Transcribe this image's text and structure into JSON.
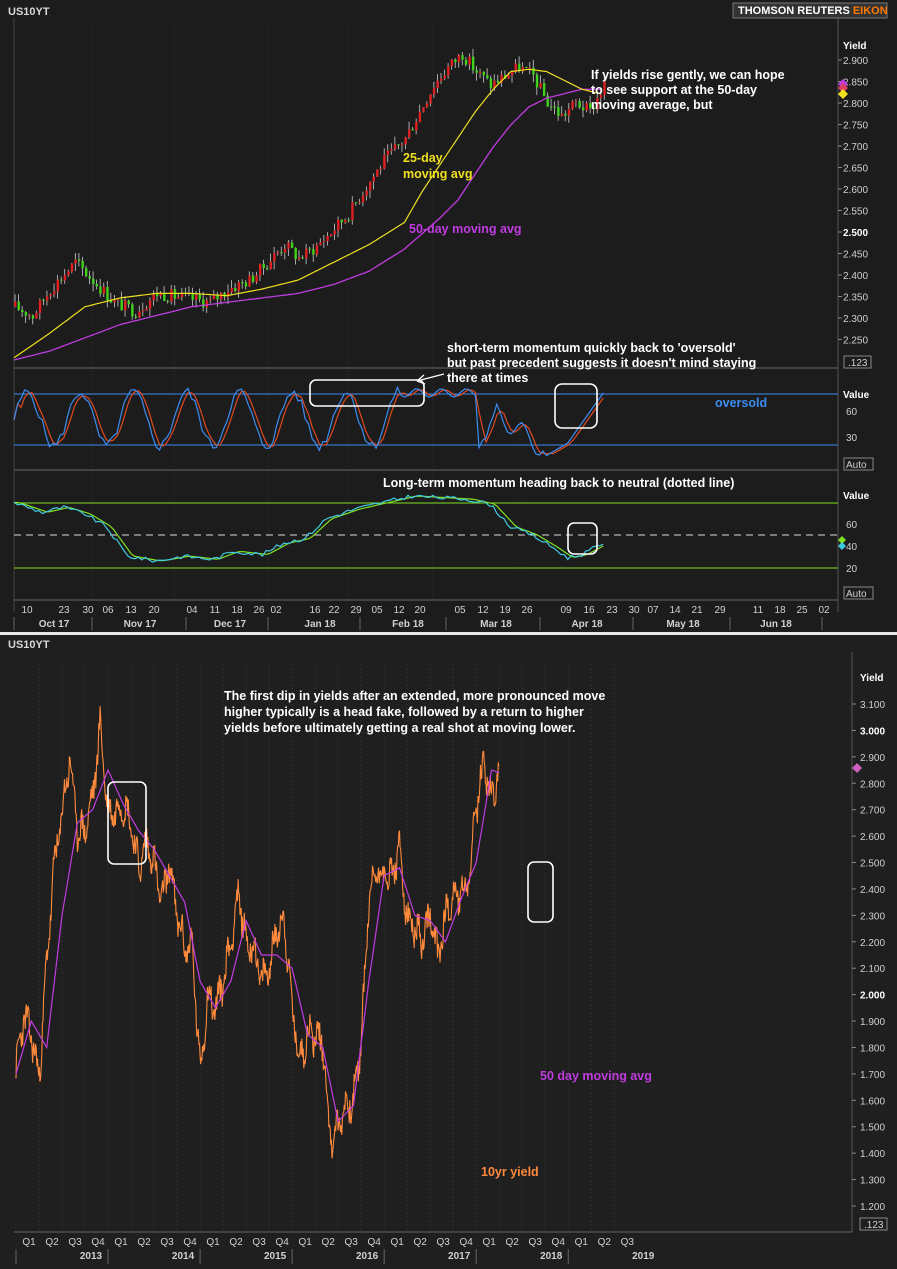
{
  "brand": {
    "name": "THOMSON REUTERS",
    "product": "EIKON"
  },
  "top_panel": {
    "symbol": "US10YT",
    "axis_label": "Yield",
    "y_ticks": [
      "2.900",
      "2.850",
      "2.800",
      "2.750",
      "2.700",
      "2.650",
      "2.600",
      "2.550",
      "2.500",
      "2.450",
      "2.400",
      "2.350",
      "2.300",
      "2.250"
    ],
    "scale_box": ".123",
    "ann_main": [
      "If yields rise gently, we can hope",
      "to see support at the 50-day",
      "moving average, but"
    ],
    "ann_25": [
      "25-day",
      "moving avg"
    ],
    "ann_50": "50-day moving avg",
    "ann_short": [
      "short-term momentum quickly back to 'oversold'",
      "but past precedent suggests it doesn't mind staying",
      "there at times"
    ],
    "ann_oversold": "oversold",
    "ann_long": "Long-term momentum heading back to neutral (dotted line)",
    "mom1_label": "Value",
    "mom1_ticks": [
      "60",
      "30"
    ],
    "mom2_label": "Value",
    "mom2_ticks": [
      "60",
      "40",
      "20"
    ],
    "auto_label": "Auto",
    "x_days": [
      "10",
      "23",
      "30",
      "06",
      "13",
      "20",
      "04",
      "11",
      "18",
      "26",
      "02",
      "16",
      "22",
      "29",
      "05",
      "12",
      "20",
      "05",
      "12",
      "19",
      "26",
      "09",
      "16",
      "23",
      "30",
      "07",
      "14",
      "21",
      "29",
      "11",
      "18",
      "25",
      "02"
    ],
    "x_months": [
      "Oct 17",
      "Nov 17",
      "Dec 17",
      "Jan 18",
      "Feb 18",
      "Mar 18",
      "Apr 18",
      "May 18",
      "Jun 18"
    ]
  },
  "bottom_panel": {
    "symbol": "US10YT",
    "axis_label": "Yield",
    "y_ticks": [
      "3.100",
      "3.000",
      "2.900",
      "2.800",
      "2.700",
      "2.600",
      "2.500",
      "2.400",
      "2.300",
      "2.200",
      "2.100",
      "2.000",
      "1.900",
      "1.800",
      "1.700",
      "1.600",
      "1.500",
      "1.400",
      "1.300",
      "1.200"
    ],
    "scale_box": ".123",
    "ann_main": [
      "The first dip in yields after an extended, more pronounced move",
      "higher typically is a head fake, followed by a return to higher",
      "yields before ultimately getting a real shot at moving lower."
    ],
    "ann_50": "50 day moving avg",
    "ann_10yr": "10yr yield",
    "x_quarters": [
      "Q1",
      "Q2",
      "Q3",
      "Q4",
      "Q1",
      "Q2",
      "Q3",
      "Q4",
      "Q1",
      "Q2",
      "Q3",
      "Q4",
      "Q1",
      "Q2",
      "Q3",
      "Q4",
      "Q1",
      "Q2",
      "Q3",
      "Q4",
      "Q1",
      "Q2",
      "Q3",
      "Q4",
      "Q1",
      "Q2",
      "Q3"
    ],
    "x_years": [
      "2013",
      "2014",
      "2015",
      "2016",
      "2017",
      "2018",
      "2019"
    ]
  },
  "colors": {
    "up": "#3fd21a",
    "down": "#e02020",
    "ma25": "#f0e020",
    "ma50": "#c03ce0",
    "yield10": "#ff8a3c",
    "mom_blue": "#3c8cf0",
    "mom_red": "#e04a20",
    "mom_green": "#80e020",
    "long_cyan": "#40c8e0",
    "accent": "#ff7a00"
  },
  "chart_data": [
    {
      "type": "candlestick",
      "title": "US10YT",
      "ylabel": "Yield",
      "ylim": [
        2.22,
        2.95
      ],
      "x_range": [
        "2017-10-06",
        "2018-06-04"
      ],
      "series": [
        {
          "name": "25-day moving avg",
          "values": [
            [
              0,
              2.225
            ],
            [
              10,
              2.28
            ],
            [
              20,
              2.34
            ],
            [
              30,
              2.36
            ],
            [
              40,
              2.37
            ],
            [
              50,
              2.37
            ],
            [
              60,
              2.365
            ],
            [
              70,
              2.38
            ],
            [
              80,
              2.4
            ],
            [
              90,
              2.44
            ],
            [
              100,
              2.48
            ],
            [
              110,
              2.53
            ],
            [
              115,
              2.6
            ],
            [
              120,
              2.66
            ],
            [
              125,
              2.72
            ],
            [
              130,
              2.78
            ],
            [
              135,
              2.83
            ],
            [
              140,
              2.87
            ],
            [
              145,
              2.875
            ],
            [
              150,
              2.87
            ],
            [
              155,
              2.85
            ],
            [
              160,
              2.83
            ],
            [
              165,
              2.82
            ]
          ]
        },
        {
          "name": "50-day moving avg",
          "values": [
            [
              0,
              2.22
            ],
            [
              10,
              2.24
            ],
            [
              20,
              2.27
            ],
            [
              30,
              2.3
            ],
            [
              40,
              2.32
            ],
            [
              50,
              2.34
            ],
            [
              60,
              2.35
            ],
            [
              70,
              2.36
            ],
            [
              80,
              2.37
            ],
            [
              90,
              2.39
            ],
            [
              100,
              2.42
            ],
            [
              110,
              2.47
            ],
            [
              120,
              2.54
            ],
            [
              125,
              2.58
            ],
            [
              130,
              2.64
            ],
            [
              135,
              2.7
            ],
            [
              140,
              2.75
            ],
            [
              145,
              2.79
            ],
            [
              150,
              2.81
            ],
            [
              155,
              2.82
            ],
            [
              160,
              2.83
            ],
            [
              165,
              2.83
            ]
          ]
        }
      ],
      "last_values": {
        "yield": 2.845,
        "ma25": 2.82,
        "ma50": 2.83
      }
    },
    {
      "type": "line",
      "title": "short-term momentum",
      "ylabel": "Value",
      "ylim": [
        10,
        100
      ],
      "levels": [
        80,
        20
      ]
    },
    {
      "type": "line",
      "title": "Long-term momentum",
      "ylabel": "Value",
      "ylim": [
        14,
        78
      ],
      "levels": [
        70,
        50,
        30
      ],
      "last_values": [
        45,
        40
      ]
    },
    {
      "type": "line",
      "title": "US10YT",
      "ylabel": "Yield",
      "ylim": [
        1.15,
        3.15
      ],
      "x_range": [
        "2013-01-01",
        "2019-09-30"
      ],
      "series": [
        {
          "name": "10yr yield",
          "values": [
            [
              "2013-01",
              1.72
            ],
            [
              "2013-02",
              1.92
            ],
            [
              "2013-03",
              1.85
            ],
            [
              "2013-04",
              1.68
            ],
            [
              "2013-05",
              2.12
            ],
            [
              "2013-06",
              2.5
            ],
            [
              "2013-07",
              2.68
            ],
            [
              "2013-08",
              2.9
            ],
            [
              "2013-09",
              2.62
            ],
            [
              "2013-10",
              2.62
            ],
            [
              "2013-11",
              2.75
            ],
            [
              "2013-12",
              3.02
            ],
            [
              "2014-01",
              2.68
            ],
            [
              "2014-02",
              2.7
            ],
            [
              "2014-03",
              2.72
            ],
            [
              "2014-04",
              2.65
            ],
            [
              "2014-05",
              2.48
            ],
            [
              "2014-06",
              2.58
            ],
            [
              "2014-07",
              2.5
            ],
            [
              "2014-08",
              2.35
            ],
            [
              "2014-09",
              2.5
            ],
            [
              "2014-10",
              2.3
            ],
            [
              "2014-11",
              2.18
            ],
            [
              "2014-12",
              2.18
            ],
            [
              "2015-01",
              1.7
            ],
            [
              "2015-02",
              2.0
            ],
            [
              "2015-03",
              1.95
            ],
            [
              "2015-04",
              2.05
            ],
            [
              "2015-05",
              2.2
            ],
            [
              "2015-06",
              2.38
            ],
            [
              "2015-07",
              2.2
            ],
            [
              "2015-08",
              2.18
            ],
            [
              "2015-09",
              2.05
            ],
            [
              "2015-10",
              2.1
            ],
            [
              "2015-11",
              2.25
            ],
            [
              "2015-12",
              2.28
            ],
            [
              "2016-01",
              1.95
            ],
            [
              "2016-02",
              1.75
            ],
            [
              "2016-03",
              1.85
            ],
            [
              "2016-04",
              1.85
            ],
            [
              "2016-05",
              1.82
            ],
            [
              "2016-06",
              1.45
            ],
            [
              "2016-07",
              1.5
            ],
            [
              "2016-08",
              1.58
            ],
            [
              "2016-09",
              1.6
            ],
            [
              "2016-10",
              1.82
            ],
            [
              "2016-11",
              2.35
            ],
            [
              "2016-12",
              2.48
            ],
            [
              "2017-01",
              2.45
            ],
            [
              "2017-02",
              2.45
            ],
            [
              "2017-03",
              2.55
            ],
            [
              "2017-04",
              2.28
            ],
            [
              "2017-05",
              2.25
            ],
            [
              "2017-06",
              2.2
            ],
            [
              "2017-07",
              2.3
            ],
            [
              "2017-08",
              2.15
            ],
            [
              "2017-09",
              2.3
            ],
            [
              "2017-10",
              2.38
            ],
            [
              "2017-11",
              2.38
            ],
            [
              "2017-12",
              2.42
            ],
            [
              "2018-01",
              2.7
            ],
            [
              "2018-02",
              2.88
            ],
            [
              "2018-03",
              2.74
            ],
            [
              "2018-04",
              2.84
            ]
          ]
        },
        {
          "name": "50 day moving avg",
          "values": [
            [
              "2013-01",
              1.7
            ],
            [
              "2013-03",
              1.9
            ],
            [
              "2013-05",
              1.8
            ],
            [
              "2013-07",
              2.3
            ],
            [
              "2013-09",
              2.65
            ],
            [
              "2013-11",
              2.7
            ],
            [
              "2014-01",
              2.85
            ],
            [
              "2014-03",
              2.72
            ],
            [
              "2014-05",
              2.62
            ],
            [
              "2014-07",
              2.55
            ],
            [
              "2014-09",
              2.45
            ],
            [
              "2014-11",
              2.35
            ],
            [
              "2015-01",
              2.05
            ],
            [
              "2015-03",
              1.95
            ],
            [
              "2015-05",
              2.05
            ],
            [
              "2015-07",
              2.28
            ],
            [
              "2015-09",
              2.15
            ],
            [
              "2015-11",
              2.15
            ],
            [
              "2016-01",
              2.1
            ],
            [
              "2016-03",
              1.85
            ],
            [
              "2016-05",
              1.8
            ],
            [
              "2016-07",
              1.52
            ],
            [
              "2016-09",
              1.58
            ],
            [
              "2016-11",
              2.05
            ],
            [
              "2017-01",
              2.45
            ],
            [
              "2017-03",
              2.48
            ],
            [
              "2017-05",
              2.3
            ],
            [
              "2017-07",
              2.28
            ],
            [
              "2017-09",
              2.2
            ],
            [
              "2017-11",
              2.36
            ],
            [
              "2018-01",
              2.5
            ],
            [
              "2018-03",
              2.85
            ],
            [
              "2018-04",
              2.84
            ]
          ]
        }
      ],
      "last_values": {
        "yield": 2.84
      }
    }
  ]
}
